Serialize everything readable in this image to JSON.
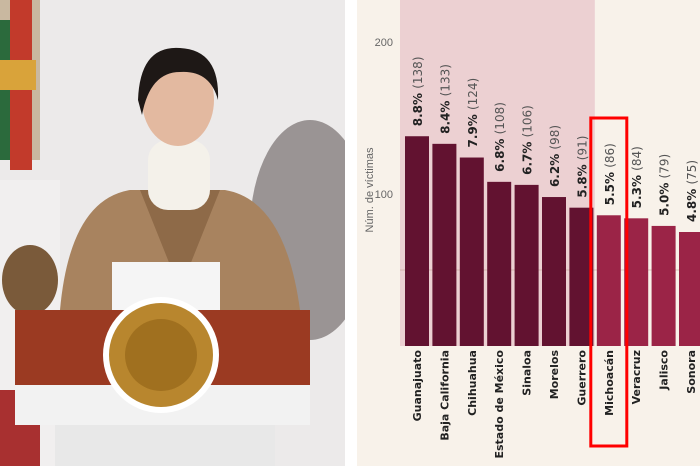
{
  "photo": {
    "seal_text": "ESTADOS UNIDOS MEXICANOS"
  },
  "chart_data": {
    "type": "bar",
    "title": "",
    "ylabel": "Núm. de víctimas",
    "xlabel": "",
    "ylim": [
      0,
      200
    ],
    "yticks": [
      100,
      200
    ],
    "gridlines": [
      50
    ],
    "categories": [
      "Guanajuato",
      "Baja California",
      "Chihuahua",
      "Estado de México",
      "Sinaloa",
      "Morelos",
      "Guerrero",
      "Michoacán",
      "Veracruz",
      "Jalisco",
      "Sonora"
    ],
    "values": [
      138,
      133,
      124,
      108,
      106,
      98,
      91,
      86,
      84,
      79,
      75
    ],
    "percent_labels": [
      "8.8%",
      "8.4%",
      "7.9%",
      "6.8%",
      "6.7%",
      "6.2%",
      "5.8%",
      "5.5%",
      "5.3%",
      "5.0%",
      "4.8%"
    ],
    "count_labels": [
      "(138)",
      "(133)",
      "(124)",
      "(108)",
      "(106)",
      "(98)",
      "(91)",
      "(86)",
      "(84)",
      "(79)",
      "(75)"
    ],
    "highlighted_region_categories": [
      "Guanajuato",
      "Baja California",
      "Chihuahua",
      "Estado de México",
      "Sinaloa",
      "Morelos",
      "Guerrero"
    ],
    "highlight_box_category": "Michoacán",
    "colors": {
      "background": "#f8f2ea",
      "shaded_region": "#ecd0d2",
      "bar_dark": "#621230",
      "bar_light": "#9b2447",
      "highlight_box": "#ff0000",
      "text": "#222222",
      "axis_text": "#666666"
    }
  }
}
